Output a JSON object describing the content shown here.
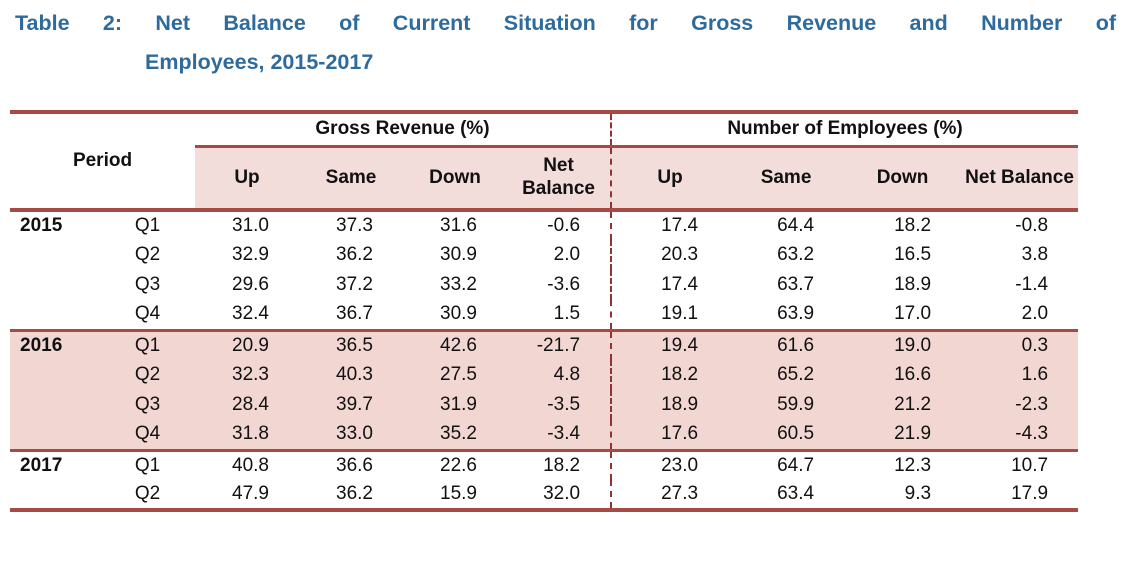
{
  "title": {
    "line1": "Table 2: Net Balance of Current Situation for Gross Revenue and Number of",
    "line2": "Employees, 2015-2017"
  },
  "table": {
    "period_header": "Period",
    "groups": [
      {
        "label": "Gross Revenue (%)"
      },
      {
        "label": "Number of Employees (%)"
      }
    ],
    "sub_headers": [
      "Up",
      "Same",
      "Down",
      "Net Balance"
    ],
    "rows": [
      {
        "year_label": "2015",
        "quarter": "Q1",
        "gross_revenue": [
          "31.0",
          "37.3",
          "31.6",
          "-0.6"
        ],
        "employees": [
          "17.4",
          "64.4",
          "18.2",
          "-0.8"
        ],
        "highlight": false
      },
      {
        "year_label": "",
        "quarter": "Q2",
        "gross_revenue": [
          "32.9",
          "36.2",
          "30.9",
          "2.0"
        ],
        "employees": [
          "20.3",
          "63.2",
          "16.5",
          "3.8"
        ],
        "highlight": false
      },
      {
        "year_label": "",
        "quarter": "Q3",
        "gross_revenue": [
          "29.6",
          "37.2",
          "33.2",
          "-3.6"
        ],
        "employees": [
          "17.4",
          "63.7",
          "18.9",
          "-1.4"
        ],
        "highlight": false
      },
      {
        "year_label": "",
        "quarter": "Q4",
        "gross_revenue": [
          "32.4",
          "36.7",
          "30.9",
          "1.5"
        ],
        "employees": [
          "19.1",
          "63.9",
          "17.0",
          "2.0"
        ],
        "highlight": false
      },
      {
        "year_label": "2016",
        "quarter": "Q1",
        "gross_revenue": [
          "20.9",
          "36.5",
          "42.6",
          "-21.7"
        ],
        "employees": [
          "19.4",
          "61.6",
          "19.0",
          "0.3"
        ],
        "highlight": true
      },
      {
        "year_label": "",
        "quarter": "Q2",
        "gross_revenue": [
          "32.3",
          "40.3",
          "27.5",
          "4.8"
        ],
        "employees": [
          "18.2",
          "65.2",
          "16.6",
          "1.6"
        ],
        "highlight": true
      },
      {
        "year_label": "",
        "quarter": "Q3",
        "gross_revenue": [
          "28.4",
          "39.7",
          "31.9",
          "-3.5"
        ],
        "employees": [
          "18.9",
          "59.9",
          "21.2",
          "-2.3"
        ],
        "highlight": true
      },
      {
        "year_label": "",
        "quarter": "Q4",
        "gross_revenue": [
          "31.8",
          "33.0",
          "35.2",
          "-3.4"
        ],
        "employees": [
          "17.6",
          "60.5",
          "21.9",
          "-4.3"
        ],
        "highlight": true
      },
      {
        "year_label": "2017",
        "quarter": "Q1",
        "gross_revenue": [
          "40.8",
          "36.6",
          "22.6",
          "18.2"
        ],
        "employees": [
          "23.0",
          "64.7",
          "12.3",
          "10.7"
        ],
        "highlight": false
      },
      {
        "year_label": "",
        "quarter": "Q2",
        "gross_revenue": [
          "47.9",
          "36.2",
          "15.9",
          "32.0"
        ],
        "employees": [
          "27.3",
          "63.4",
          "9.3",
          "17.9"
        ],
        "highlight": false
      }
    ]
  },
  "colors": {
    "title_blue": "#2e6b9c",
    "table_line": "#a54a45",
    "divider_dashed": "#8f3431",
    "header_band": "#f3dddb",
    "highlight_band": "#f2d6d1"
  }
}
